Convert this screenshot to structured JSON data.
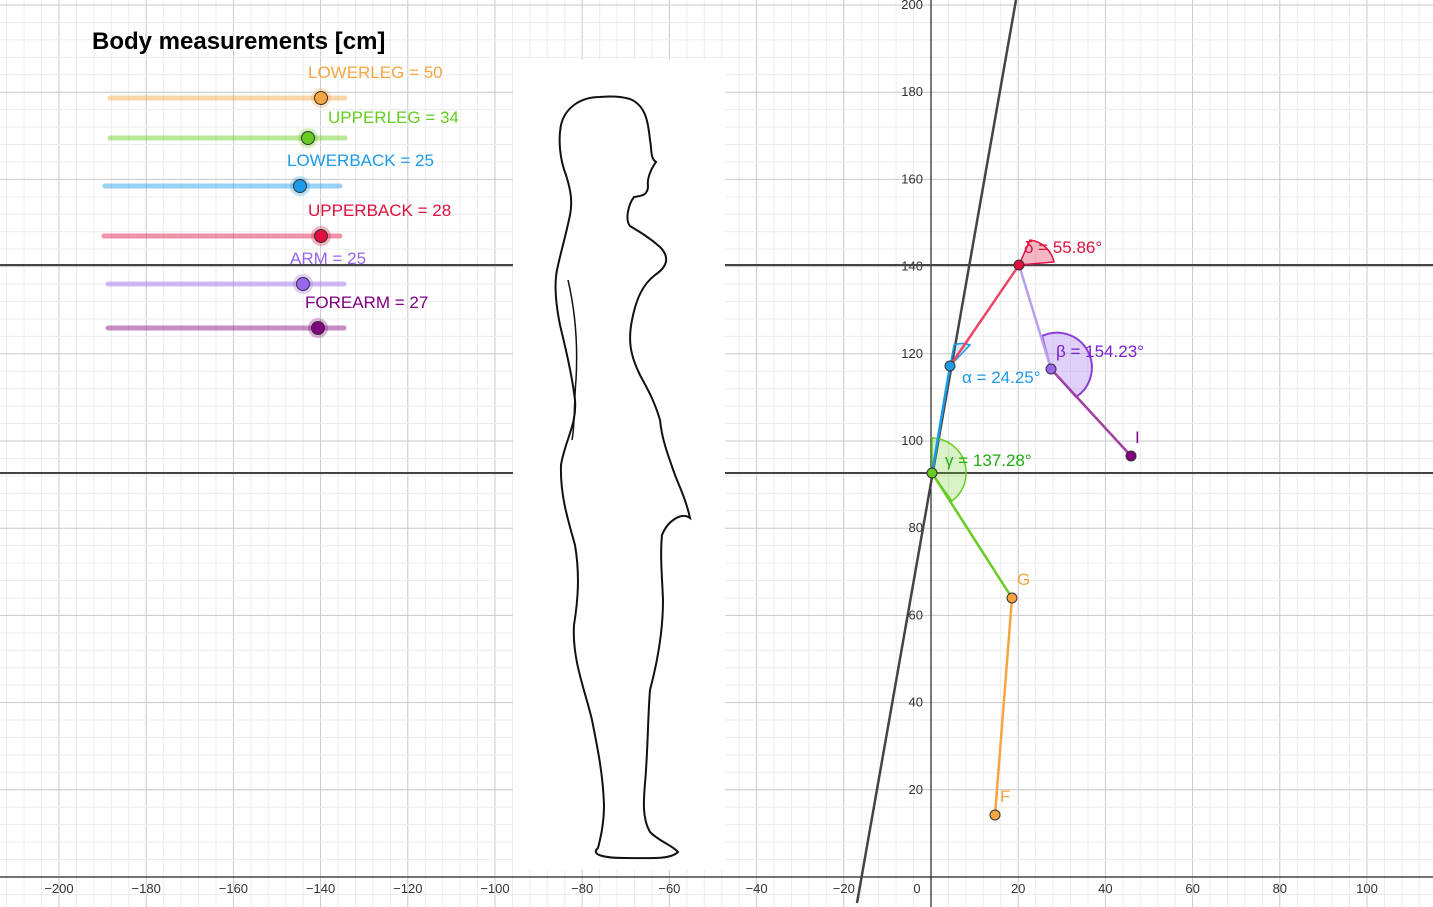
{
  "title": "Body measurements [cm]",
  "sliders": [
    {
      "label": "LOWERLEG = 50",
      "color": "#f7a541",
      "name": "lowerleg"
    },
    {
      "label": "UPPERLEG = 34",
      "color": "#66cc22",
      "name": "upperleg"
    },
    {
      "label": "LOWERBACK = 25",
      "color": "#1e9be8",
      "name": "lowerback"
    },
    {
      "label": "UPPERBACK = 28",
      "color": "#e0103e",
      "name": "upperback"
    },
    {
      "label": "ARM = 25",
      "color": "#9966ee",
      "name": "arm"
    },
    {
      "label": "FOREARM = 27",
      "color": "#800080",
      "name": "forearm"
    }
  ],
  "axes": {
    "x_ticks": [
      "−200",
      "−180",
      "−160",
      "−140",
      "−120",
      "−100",
      "−80",
      "−60",
      "−40",
      "−20",
      "0",
      "20",
      "40",
      "60",
      "80",
      "100"
    ],
    "y_ticks": [
      "20",
      "40",
      "60",
      "80",
      "100",
      "120",
      "140",
      "160",
      "180",
      "200"
    ]
  },
  "points": {
    "F": "F",
    "G": "G",
    "I": "I"
  },
  "angles": {
    "delta": "δ = 55.86°",
    "beta": "β = 154.23°",
    "alpha": "α = 24.25°",
    "gamma": "γ = 137.28°"
  },
  "colors": {
    "lowerleg": "#f7a541",
    "upperleg": "#66cc22",
    "lowerback": "#1e9be8",
    "upperback": "#e0103e",
    "arm": "#9966ee",
    "forearm": "#800080"
  }
}
